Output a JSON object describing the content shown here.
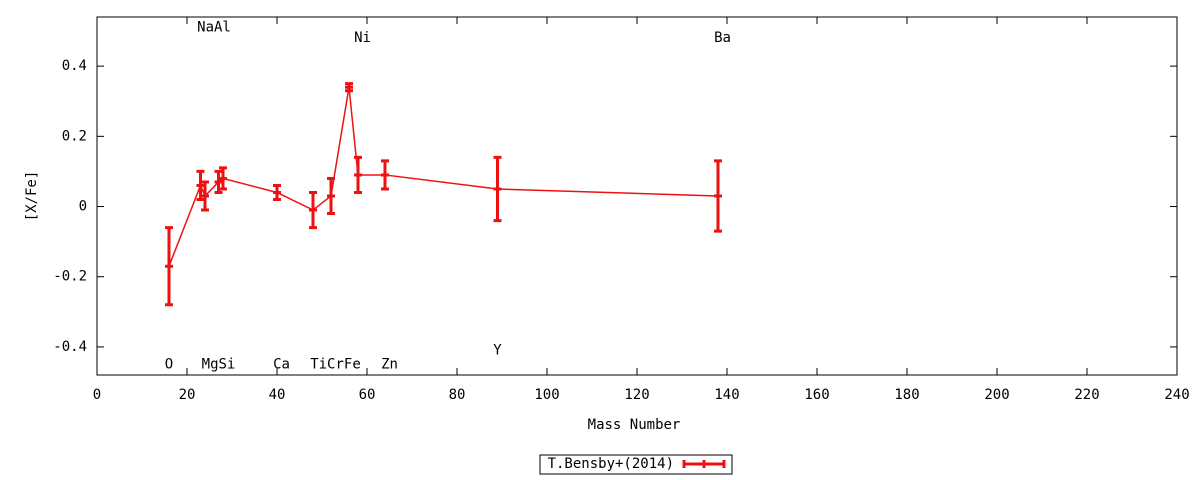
{
  "chart_data": {
    "type": "errorline",
    "x_label": "Mass Number",
    "y_label": "[X/Fe]",
    "xlim": [
      0,
      240
    ],
    "xticks": [
      0,
      20,
      40,
      60,
      80,
      100,
      120,
      140,
      160,
      180,
      200,
      220,
      240
    ],
    "ylim": [
      -0.48,
      0.54
    ],
    "yticks": [
      -0.4,
      -0.2,
      0,
      0.2,
      0.4
    ],
    "legend": "bottom",
    "series": [
      {
        "name": "T.Bensby+(2014)",
        "color": "#ee1111",
        "x": [
          16,
          23,
          24,
          27,
          28,
          40,
          48,
          52,
          56,
          58,
          64,
          89,
          138
        ],
        "values": [
          -0.17,
          0.06,
          0.03,
          0.07,
          0.08,
          0.04,
          -0.01,
          0.03,
          0.34,
          0.09,
          0.09,
          0.05,
          0.03
        ],
        "errors": [
          0.11,
          0.04,
          0.04,
          0.03,
          0.03,
          0.02,
          0.05,
          0.05,
          0.01,
          0.05,
          0.04,
          0.09,
          0.1
        ]
      }
    ],
    "annotations": [
      {
        "text": "NaAl",
        "x": 26,
        "y": 0.51
      },
      {
        "text": "Ni",
        "x": 59,
        "y": 0.48
      },
      {
        "text": "Ba",
        "x": 139,
        "y": 0.48
      },
      {
        "text": "O",
        "x": 16,
        "y": -0.45
      },
      {
        "text": "MgSi",
        "x": 27,
        "y": -0.45
      },
      {
        "text": "Ca",
        "x": 41,
        "y": -0.45
      },
      {
        "text": "TiCrFe",
        "x": 53,
        "y": -0.45
      },
      {
        "text": "Zn",
        "x": 65,
        "y": -0.45
      },
      {
        "text": "Y",
        "x": 89,
        "y": -0.41
      }
    ]
  }
}
